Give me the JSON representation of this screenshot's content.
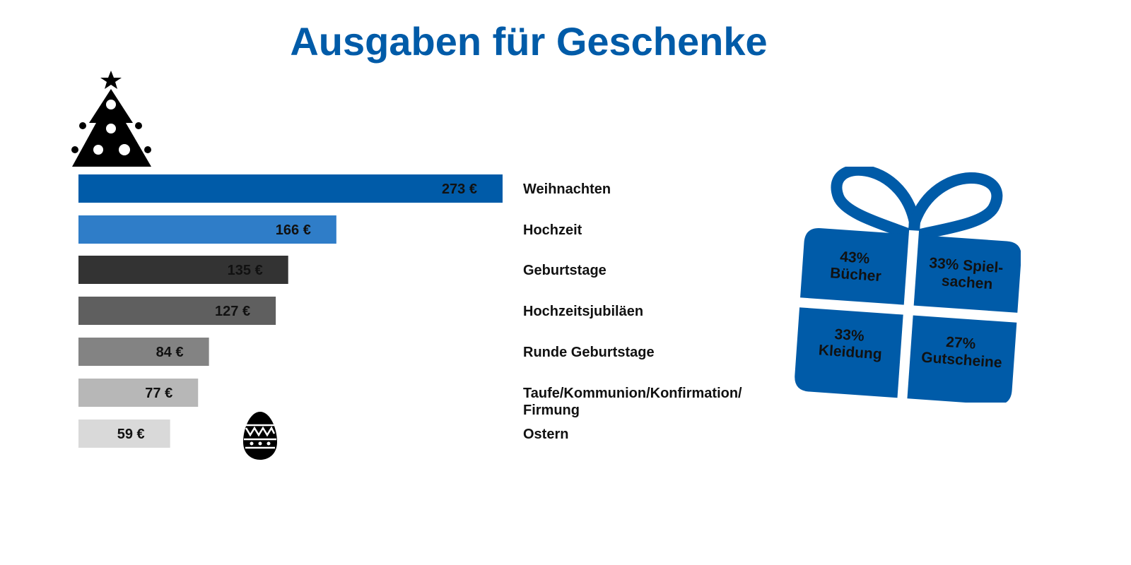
{
  "header": {
    "title": "Ausgaben für Geschenke"
  },
  "colors": {
    "title": "#005ba8",
    "gift": "#005ba8",
    "labels": "#111111",
    "bars": [
      "#005ba8",
      "#2f7dc8",
      "#333333",
      "#5f5f5f",
      "#838383",
      "#b7b7b7",
      "#d9d9d9"
    ]
  },
  "icons": {
    "tree": "christmas-tree-icon",
    "egg": "easter-egg-icon",
    "gift": "gift-box-icon"
  },
  "chart_data": {
    "type": "bar",
    "orientation": "horizontal",
    "title": "Ausgaben für Geschenke",
    "unit": "€",
    "categories": [
      "Weihnachten",
      "Hochzeit",
      "Geburtstage",
      "Hochzeitsjubiläen",
      "Runde Geburtstage",
      "Taufe/Kommunion/Konfirmation/ Firmung",
      "Ostern"
    ],
    "category_lines": [
      [
        "Weihnachten"
      ],
      [
        "Hochzeit"
      ],
      [
        "Geburtstage"
      ],
      [
        "Hochzeitsjubiläen"
      ],
      [
        "Runde Geburtstage"
      ],
      [
        "Taufe/Kommunion/Konfirmation/",
        "Firmung"
      ],
      [
        "Ostern"
      ]
    ],
    "values": [
      273,
      166,
      135,
      127,
      84,
      77,
      59
    ],
    "value_labels": [
      "273 €",
      "166 €",
      "135 €",
      "127 €",
      "84 €",
      "77 €",
      "59 €"
    ],
    "xlim": [
      0,
      273
    ],
    "grid": false,
    "legend": "none"
  },
  "gift_breakdown": {
    "type": "table",
    "cells": [
      {
        "lines": [
          "43%",
          "Bücher"
        ]
      },
      {
        "lines": [
          "33% Spiel-",
          "sachen"
        ]
      },
      {
        "lines": [
          "33%",
          "Kleidung"
        ]
      },
      {
        "lines": [
          "27%",
          "Gutscheine"
        ]
      }
    ]
  }
}
